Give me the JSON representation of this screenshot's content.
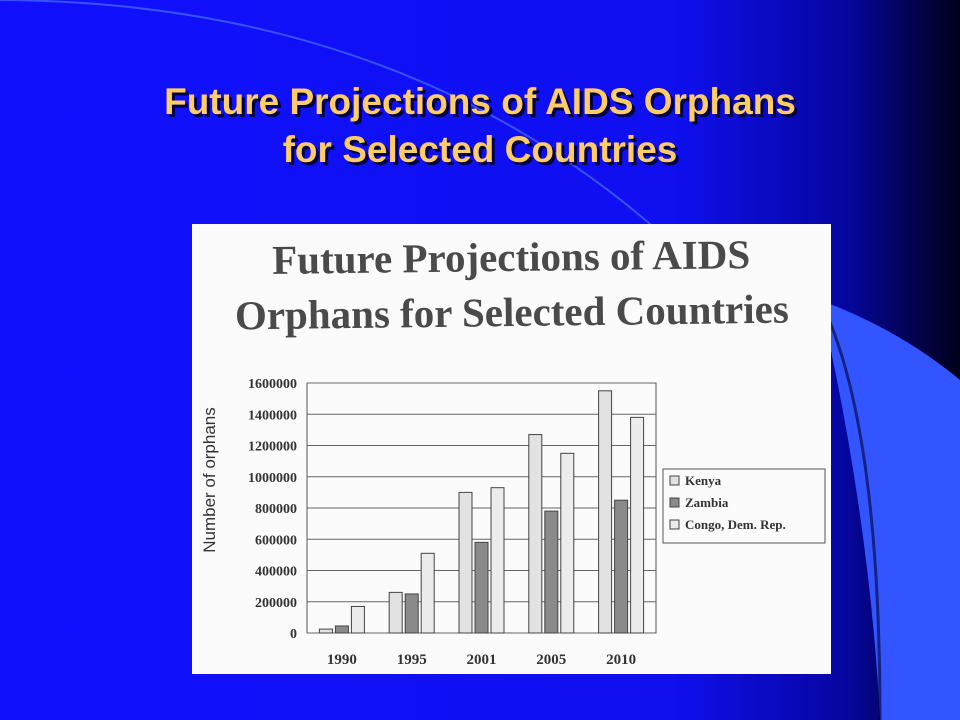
{
  "slide": {
    "title_line1": "Future Projections of AIDS Orphans",
    "title_line2": "for Selected Countries"
  },
  "chart_data": {
    "type": "bar",
    "title_line1": "Future Projections of AIDS",
    "title_line2": "Orphans for Selected Countries",
    "xlabel": "",
    "ylabel": "Number of orphans",
    "ylim": [
      0,
      1600000
    ],
    "yticks": [
      0,
      200000,
      400000,
      600000,
      800000,
      1000000,
      1200000,
      1400000,
      1600000
    ],
    "categories": [
      "1990",
      "1995",
      "2001",
      "2005",
      "2010"
    ],
    "series": [
      {
        "name": "Kenya",
        "values": [
          25000,
          260000,
          900000,
          1270000,
          1550000
        ]
      },
      {
        "name": "Zambia",
        "values": [
          45000,
          250000,
          580000,
          780000,
          850000
        ]
      },
      {
        "name": "Congo, Dem. Rep.",
        "values": [
          170000,
          510000,
          930000,
          1150000,
          1380000
        ]
      }
    ],
    "legend_position": "right",
    "grid": true,
    "colors": {
      "Kenya": "#e2e2e2",
      "Zambia": "#8a8a8a",
      "Congo, Dem. Rep.": "#ececec"
    }
  }
}
